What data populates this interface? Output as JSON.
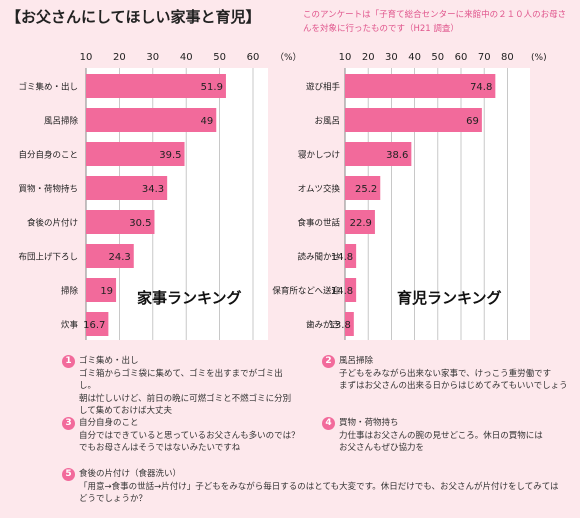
{
  "header": {
    "title": "【お父さんにしてほしい家事と育児】",
    "note": "このアンケートは「子育て総合センターに来館中の２１０人のお母さんを対象に行ったものです（H21 調査）"
  },
  "chart_data": [
    {
      "type": "bar",
      "orientation": "horizontal",
      "title": "家事ランキング",
      "unit": "（%）",
      "categories": [
        "ゴミ集め・出し",
        "風呂掃除",
        "自分自身のこと",
        "買物・荷物持ち",
        "食後の片付け",
        "布団上げ下ろし",
        "掃除",
        "炊事"
      ],
      "values": [
        51.9,
        49,
        39.5,
        34.3,
        30.5,
        24.3,
        19,
        16.7
      ],
      "value_labels": [
        "51.9",
        "49",
        "39.5",
        "34.3",
        "30.5",
        "24.3",
        "19",
        "16.7"
      ],
      "ticks": [
        "10",
        "20",
        "30",
        "40",
        "50",
        "60"
      ],
      "xlim": [
        10,
        60
      ],
      "bar_color": "#f26a9b",
      "grid": true
    },
    {
      "type": "bar",
      "orientation": "horizontal",
      "title": "育児ランキング",
      "unit": "(%)",
      "categories": [
        "遊び相手",
        "お風呂",
        "寝かしつけ",
        "オムツ交換",
        "食事の世話",
        "読み聞かせ",
        "保育所などへ送迎",
        "歯みがき"
      ],
      "values": [
        74.8,
        69,
        38.6,
        25.2,
        22.9,
        14.8,
        14.8,
        13.8
      ],
      "value_labels": [
        "74.8",
        "69",
        "38.6",
        "25.2",
        "22.9",
        "14.8",
        "14.8",
        "13.8"
      ],
      "ticks": [
        "10",
        "20",
        "30",
        "40",
        "50",
        "60",
        "70",
        "80"
      ],
      "xlim": [
        10,
        80
      ],
      "bar_color": "#f26a9b",
      "grid": true
    }
  ],
  "tips": [
    {
      "num": "1",
      "title": "ゴミ集め・出し",
      "text": "ゴミ箱からゴミ袋に集めて、ゴミを出すまでがゴミ出し。\n朝は忙しいけど、前日の晩に可燃ゴミと不燃ゴミに分別\nして集めておけば大丈夫"
    },
    {
      "num": "2",
      "title": "風呂掃除",
      "text": "子どもをみながら出来ない家事で、けっこう重労働です\nまずはお父さんの出来る日からはじめてみてもいいでしょう"
    },
    {
      "num": "3",
      "title": "自分自身のこと",
      "text": "自分ではできていると思っているお父さんも多いのでは？\nでもお母さんはそうではないみたいですね"
    },
    {
      "num": "4",
      "title": "買物・荷物持ち",
      "text": "力仕事はお父さんの腕の見せどころ。休日の買物には\nお父さんもぜひ協力を"
    },
    {
      "num": "5",
      "title": "食後の片付け（食器洗い）",
      "text": "「用意→食事の世話→片付け」子どもをみながら毎日するのはとても大変です。休日だけでも、お父さんが片付けをしてみては\nどうでしょうか？"
    }
  ]
}
